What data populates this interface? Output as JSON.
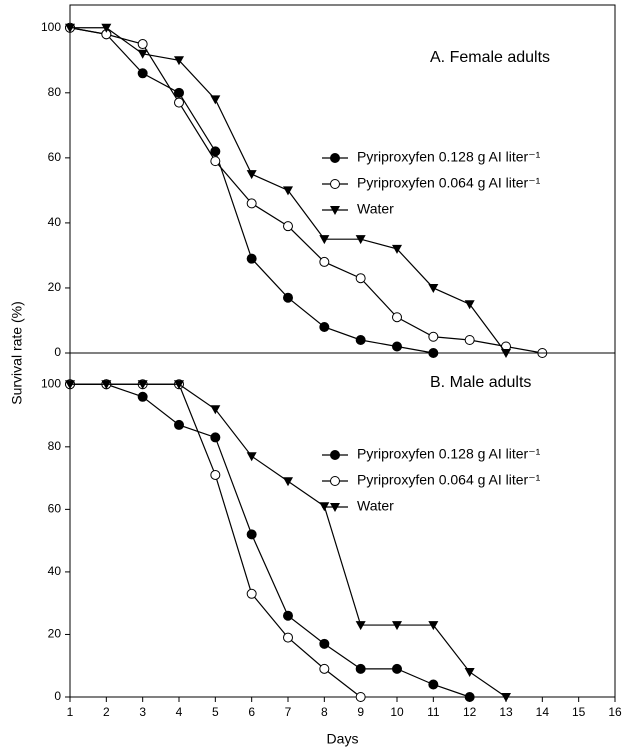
{
  "chart_data": [
    {
      "type": "line",
      "title": "A.  Female adults",
      "ylabel": "Survival rate (%)",
      "x": [
        1,
        2,
        3,
        4,
        5,
        6,
        7,
        8,
        9,
        10,
        11,
        12,
        13,
        14
      ],
      "xlim": [
        1,
        16
      ],
      "ylim": [
        0,
        107
      ],
      "yticks": [
        0,
        20,
        40,
        60,
        80,
        100
      ],
      "series": [
        {
          "name": "Pyriproxyfen 0.128 g AI liter⁻¹",
          "color": "#000",
          "marker": "circle-filled",
          "values": [
            100,
            98,
            86,
            80,
            62,
            29,
            17,
            8,
            4,
            2,
            0,
            null,
            null,
            null
          ]
        },
        {
          "name": "Pyriproxyfen 0.064 g AI liter⁻¹",
          "color": "#000",
          "marker": "circle-open",
          "values": [
            100,
            98,
            95,
            77,
            59,
            46,
            39,
            28,
            23,
            11,
            5,
            4,
            2,
            0
          ]
        },
        {
          "name": "Water",
          "color": "#000",
          "marker": "triangle-down",
          "values": [
            100,
            100,
            92,
            90,
            78,
            55,
            50,
            35,
            35,
            32,
            20,
            15,
            0,
            null
          ]
        }
      ]
    },
    {
      "type": "line",
      "title": "B.  Male adults",
      "xlabel": "Days",
      "x": [
        1,
        2,
        3,
        4,
        5,
        6,
        7,
        8,
        9,
        10,
        11,
        12,
        13
      ],
      "xlim": [
        1,
        16
      ],
      "xticks": [
        1,
        2,
        3,
        4,
        5,
        6,
        7,
        8,
        9,
        10,
        11,
        12,
        13,
        14,
        15,
        16
      ],
      "ylim": [
        0,
        110
      ],
      "yticks": [
        0,
        20,
        40,
        60,
        80,
        100
      ],
      "series": [
        {
          "name": "Pyriproxyfen 0.128 g AI liter⁻¹",
          "color": "#000",
          "marker": "circle-filled",
          "values": [
            100,
            100,
            96,
            87,
            83,
            52,
            26,
            17,
            9,
            9,
            4,
            0,
            null
          ]
        },
        {
          "name": "Pyriproxyfen 0.064 g AI liter⁻¹",
          "color": "#000",
          "marker": "circle-open",
          "values": [
            100,
            100,
            100,
            100,
            71,
            33,
            19,
            9,
            0,
            null,
            null,
            null,
            null
          ]
        },
        {
          "name": "Water",
          "color": "#000",
          "marker": "triangle-down",
          "values": [
            100,
            100,
            100,
            100,
            92,
            77,
            69,
            61,
            23,
            23,
            23,
            8,
            0
          ]
        }
      ]
    }
  ]
}
